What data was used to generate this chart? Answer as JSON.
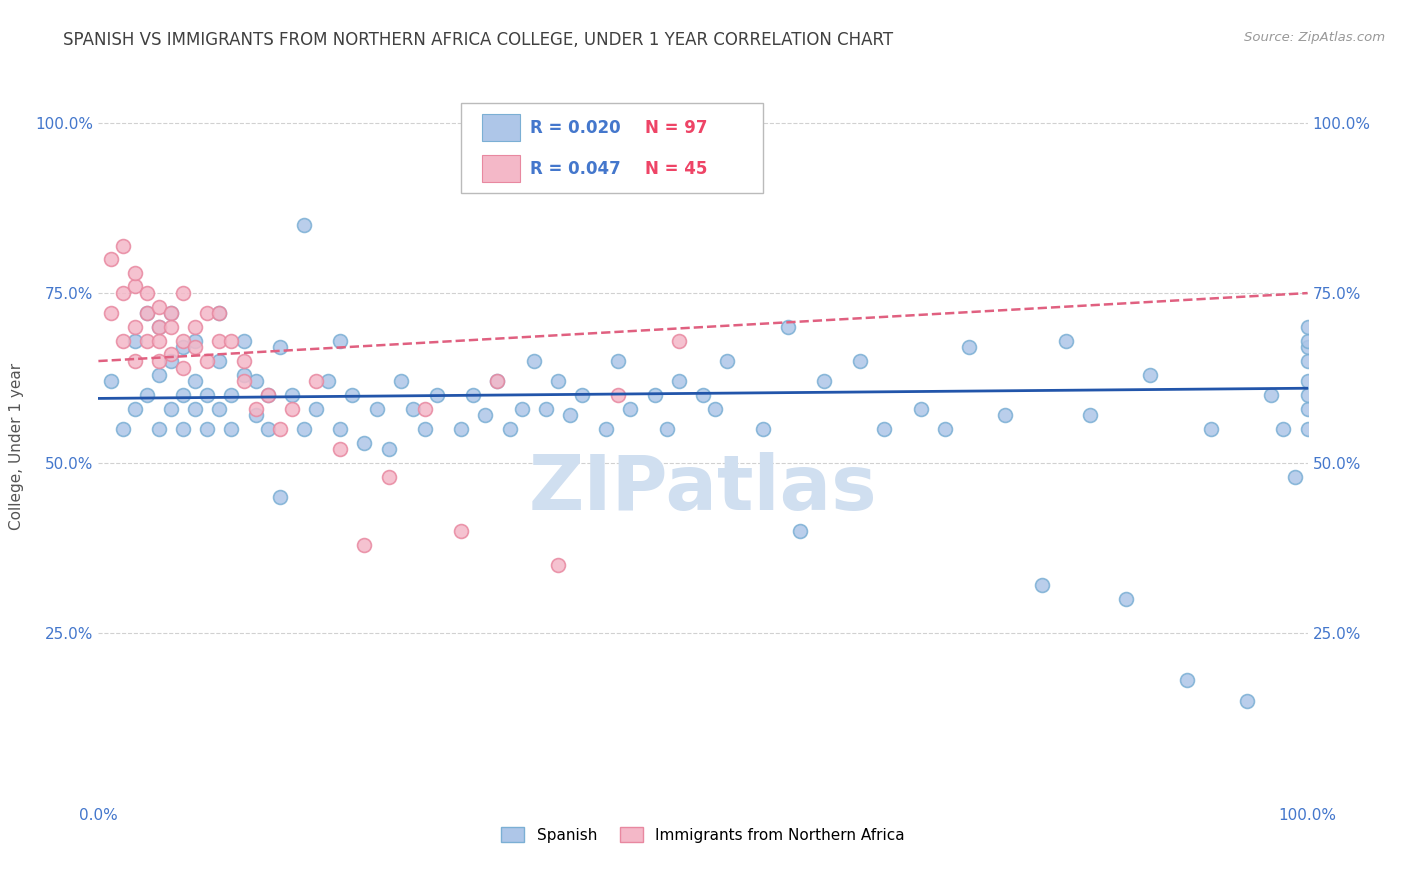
{
  "title": "SPANISH VS IMMIGRANTS FROM NORTHERN AFRICA COLLEGE, UNDER 1 YEAR CORRELATION CHART",
  "source": "Source: ZipAtlas.com",
  "ylabel": "College, Under 1 year",
  "xlim": [
    0.0,
    1.0
  ],
  "ylim": [
    0.0,
    1.05
  ],
  "blue_color": "#AEC6E8",
  "blue_edge_color": "#7BAFD4",
  "pink_color": "#F4B8C8",
  "pink_edge_color": "#E888A0",
  "blue_line_color": "#2255AA",
  "pink_line_color": "#E06080",
  "background_color": "#FFFFFF",
  "grid_color": "#CCCCCC",
  "title_color": "#404040",
  "axis_color": "#4477CC",
  "watermark_color": "#D0DFF0",
  "blue_line_y0": 0.595,
  "blue_line_y1": 0.61,
  "pink_line_y0": 0.65,
  "pink_line_y1": 0.75,
  "blue_scatter_x": [
    0.01,
    0.02,
    0.03,
    0.03,
    0.04,
    0.04,
    0.05,
    0.05,
    0.05,
    0.06,
    0.06,
    0.06,
    0.07,
    0.07,
    0.07,
    0.08,
    0.08,
    0.08,
    0.09,
    0.09,
    0.1,
    0.1,
    0.1,
    0.11,
    0.11,
    0.12,
    0.12,
    0.13,
    0.13,
    0.14,
    0.14,
    0.15,
    0.15,
    0.16,
    0.17,
    0.17,
    0.18,
    0.19,
    0.2,
    0.2,
    0.21,
    0.22,
    0.23,
    0.24,
    0.25,
    0.26,
    0.27,
    0.28,
    0.3,
    0.31,
    0.32,
    0.33,
    0.34,
    0.35,
    0.36,
    0.37,
    0.38,
    0.39,
    0.4,
    0.42,
    0.43,
    0.44,
    0.46,
    0.47,
    0.48,
    0.5,
    0.51,
    0.52,
    0.55,
    0.57,
    0.58,
    0.6,
    0.63,
    0.65,
    0.68,
    0.7,
    0.72,
    0.75,
    0.78,
    0.8,
    0.82,
    0.85,
    0.87,
    0.9,
    0.92,
    0.95,
    0.97,
    0.98,
    0.99,
    1.0,
    1.0,
    1.0,
    1.0,
    1.0,
    1.0,
    1.0,
    1.0
  ],
  "blue_scatter_y": [
    0.62,
    0.55,
    0.58,
    0.68,
    0.6,
    0.72,
    0.63,
    0.55,
    0.7,
    0.58,
    0.65,
    0.72,
    0.6,
    0.67,
    0.55,
    0.62,
    0.58,
    0.68,
    0.6,
    0.55,
    0.65,
    0.58,
    0.72,
    0.6,
    0.55,
    0.63,
    0.68,
    0.57,
    0.62,
    0.6,
    0.55,
    0.67,
    0.45,
    0.6,
    0.55,
    0.85,
    0.58,
    0.62,
    0.55,
    0.68,
    0.6,
    0.53,
    0.58,
    0.52,
    0.62,
    0.58,
    0.55,
    0.6,
    0.55,
    0.6,
    0.57,
    0.62,
    0.55,
    0.58,
    0.65,
    0.58,
    0.62,
    0.57,
    0.6,
    0.55,
    0.65,
    0.58,
    0.6,
    0.55,
    0.62,
    0.6,
    0.58,
    0.65,
    0.55,
    0.7,
    0.4,
    0.62,
    0.65,
    0.55,
    0.58,
    0.55,
    0.67,
    0.57,
    0.32,
    0.68,
    0.57,
    0.3,
    0.63,
    0.18,
    0.55,
    0.15,
    0.6,
    0.55,
    0.48,
    0.62,
    0.67,
    0.58,
    0.6,
    0.68,
    0.7,
    0.55,
    0.65
  ],
  "pink_scatter_x": [
    0.01,
    0.01,
    0.02,
    0.02,
    0.02,
    0.03,
    0.03,
    0.03,
    0.03,
    0.04,
    0.04,
    0.04,
    0.05,
    0.05,
    0.05,
    0.05,
    0.06,
    0.06,
    0.06,
    0.07,
    0.07,
    0.07,
    0.08,
    0.08,
    0.09,
    0.09,
    0.1,
    0.1,
    0.11,
    0.12,
    0.12,
    0.13,
    0.14,
    0.15,
    0.16,
    0.18,
    0.2,
    0.22,
    0.24,
    0.27,
    0.3,
    0.33,
    0.38,
    0.43,
    0.48
  ],
  "pink_scatter_y": [
    0.72,
    0.8,
    0.75,
    0.82,
    0.68,
    0.76,
    0.7,
    0.65,
    0.78,
    0.72,
    0.68,
    0.75,
    0.7,
    0.65,
    0.73,
    0.68,
    0.72,
    0.66,
    0.7,
    0.75,
    0.68,
    0.64,
    0.7,
    0.67,
    0.72,
    0.65,
    0.68,
    0.72,
    0.68,
    0.65,
    0.62,
    0.58,
    0.6,
    0.55,
    0.58,
    0.62,
    0.52,
    0.38,
    0.48,
    0.58,
    0.4,
    0.62,
    0.35,
    0.6,
    0.68
  ]
}
